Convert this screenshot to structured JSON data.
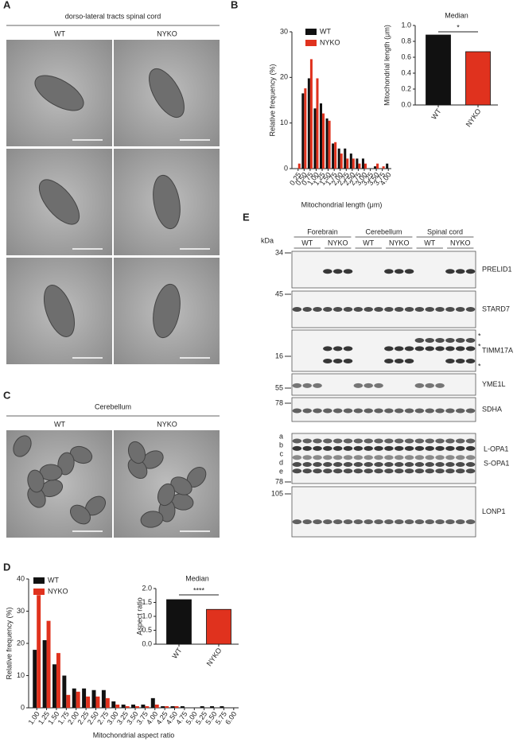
{
  "panel_a": {
    "label": "A",
    "title": "dorso-lateral tracts spinal cord",
    "columns": [
      "WT",
      "NYKO"
    ]
  },
  "panel_c": {
    "label": "C",
    "title": "Cerebellum",
    "columns": [
      "WT",
      "NYKO"
    ]
  },
  "panel_e": {
    "label": "E",
    "unit": "kDa",
    "groups": [
      {
        "name": "Forebrain",
        "lanes": [
          "WT",
          "NYKO"
        ]
      },
      {
        "name": "Cerebellum",
        "lanes": [
          "WT",
          "NYKO"
        ]
      },
      {
        "name": "Spinal cord",
        "lanes": [
          "WT",
          "NYKO"
        ]
      }
    ],
    "blots": [
      {
        "name": "PRELID1",
        "marker": 34
      },
      {
        "name": "STARD7",
        "marker": 45
      },
      {
        "name": "TIMM17A",
        "marker": 16,
        "asterisks": [
          "*",
          "*",
          "*"
        ]
      },
      {
        "name": "YME1L",
        "marker": 55
      },
      {
        "name": "SDHA",
        "marker": 78
      },
      {
        "names": [
          "L-OPA1",
          "S-OPA1"
        ],
        "bands": [
          "a",
          "b",
          "c",
          "d",
          "e"
        ],
        "marker": 78
      },
      {
        "name": "LONP1",
        "marker": 105
      }
    ]
  },
  "chart_data": [
    {
      "type": "bar",
      "panel": "B",
      "x_label": "Mitochondrial length (μm)",
      "y_label": "Relative frequency (%)",
      "categories": [
        "0.25",
        "0.50",
        "0.75",
        "1.00",
        "1.25",
        "1.50",
        "1.75",
        "2.00",
        "2.25",
        "2.50",
        "2.75",
        "3.00",
        "3.25",
        "3.50",
        "3.75",
        "4.00"
      ],
      "series": [
        {
          "name": "WT",
          "color": "#111111",
          "values": [
            0,
            16.5,
            19.8,
            13.2,
            14.3,
            11,
            5.5,
            4.4,
            4.4,
            3.3,
            2.2,
            2.2,
            0,
            0.5,
            0,
            1.1
          ]
        },
        {
          "name": "NYKO",
          "color": "#e0321e",
          "values": [
            1.1,
            17.6,
            24,
            19.8,
            12.1,
            10.5,
            5.8,
            3.3,
            2.2,
            2.2,
            1.1,
            1.1,
            0,
            1.1,
            0.5,
            0
          ]
        }
      ],
      "ylim": [
        0,
        30
      ],
      "yticks": [
        0,
        10,
        20,
        30
      ],
      "legend": "top-left"
    },
    {
      "type": "bar",
      "title": "Median",
      "y_label": "Mitochondrial length (μm)",
      "categories": [
        "WT",
        "NYKO"
      ],
      "values": [
        0.88,
        0.67
      ],
      "colors": [
        "#111111",
        "#e0321e"
      ],
      "annotation": "*",
      "ylim": [
        0,
        1.0
      ],
      "yticks": [
        {
          "value": 0,
          "label": "0.0"
        },
        0.2,
        0.4,
        0.6,
        0.8,
        {
          "value": 1.0,
          "label": "1.0"
        }
      ]
    },
    {
      "type": "bar",
      "panel": "D",
      "x_label": "Mitochondrial aspect ratio",
      "y_label": "Relative frequency (%)",
      "categories": [
        "1.00",
        "1.25",
        "1.50",
        "1.75",
        "2.00",
        "2.25",
        "2.50",
        "2.75",
        "3.00",
        "3.25",
        "3.50",
        "3.75",
        "4.00",
        "4.25",
        "4.50",
        "4.75",
        "5.00",
        "5.25",
        "5.50",
        "5.75",
        "6.00"
      ],
      "series": [
        {
          "name": "WT",
          "color": "#111111",
          "values": [
            18,
            21,
            13.5,
            10,
            6,
            6,
            5.5,
            5.5,
            2,
            1,
            1,
            1,
            3,
            0.5,
            0.5,
            0.5,
            0,
            0.5,
            0.5,
            0.5,
            0
          ]
        },
        {
          "name": "NYKO",
          "color": "#e0321e",
          "values": [
            35,
            27,
            17,
            4,
            5,
            3.5,
            3.5,
            3,
            1,
            0.5,
            0.5,
            0.5,
            1,
            0.5,
            0.5,
            0,
            0,
            0,
            0,
            0,
            0
          ]
        }
      ],
      "ylim": [
        0,
        40
      ],
      "yticks": [
        0,
        10,
        20,
        30,
        40
      ],
      "legend": "top-left"
    },
    {
      "type": "bar",
      "title": "Median",
      "y_label": "Aspect ratio",
      "categories": [
        "WT",
        "NYKO"
      ],
      "values": [
        1.6,
        1.25
      ],
      "colors": [
        "#111111",
        "#e0321e"
      ],
      "annotation": "****",
      "ylim": [
        0,
        2.0
      ],
      "yticks": [
        {
          "value": 0,
          "label": "0.0"
        },
        0.5,
        {
          "value": 1.0,
          "label": "1.0"
        },
        1.5,
        {
          "value": 2.0,
          "label": "2.0"
        }
      ]
    }
  ]
}
